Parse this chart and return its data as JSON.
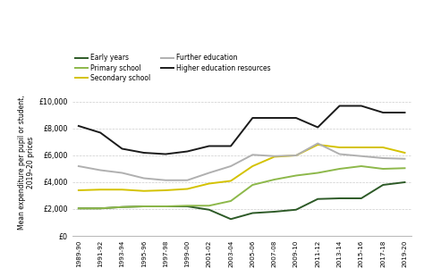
{
  "x_labels": [
    "1989-90",
    "1991-92",
    "1993-94",
    "1995-96",
    "1997-98",
    "1999-00",
    "2001-02",
    "2003-04",
    "2005-06",
    "2007-08",
    "2009-10",
    "2011-12",
    "2013-14",
    "2015-16",
    "2017-18",
    "2019-20"
  ],
  "early_years": [
    2050,
    2050,
    2150,
    2200,
    2200,
    2200,
    1950,
    1250,
    1700,
    1800,
    1950,
    2750,
    2800,
    2800,
    3800,
    4000
  ],
  "primary_school": [
    2050,
    2050,
    2150,
    2200,
    2200,
    2250,
    2250,
    2600,
    3800,
    4200,
    4500,
    4700,
    5000,
    5200,
    5000,
    5050
  ],
  "secondary_school": [
    3400,
    3450,
    3450,
    3350,
    3400,
    3500,
    3900,
    4100,
    5200,
    5900,
    6000,
    6800,
    6600,
    6600,
    6600,
    6200
  ],
  "further_education": [
    5200,
    4900,
    4700,
    4300,
    4150,
    4150,
    4700,
    5200,
    6050,
    5950,
    6000,
    6900,
    6100,
    5950,
    5800,
    5750
  ],
  "higher_education": [
    8200,
    7700,
    6500,
    6200,
    6100,
    6300,
    6700,
    6700,
    8800,
    8800,
    8800,
    8100,
    9700,
    9700,
    9200,
    9200
  ],
  "colors": {
    "early_years": "#2d5a27",
    "primary_school": "#8db84a",
    "secondary_school": "#d4c200",
    "further_education": "#b0b0b0",
    "higher_education": "#1a1a1a"
  },
  "ylabel": "Mean expenditure per pupil or student,\n2019–20 prices",
  "ylim": [
    0,
    11000
  ],
  "yticks": [
    0,
    2000,
    4000,
    6000,
    8000,
    10000
  ],
  "ytick_labels": [
    "£0",
    "£2,000",
    "£4,000",
    "£6,000",
    "£8,000",
    "£10,000"
  ],
  "background_color": "#ffffff",
  "grid_color": "#cccccc",
  "legend": {
    "col1": [
      "Early years",
      "Secondary school",
      "Higher education resources"
    ],
    "col2": [
      "Primary school",
      "Further education"
    ]
  }
}
